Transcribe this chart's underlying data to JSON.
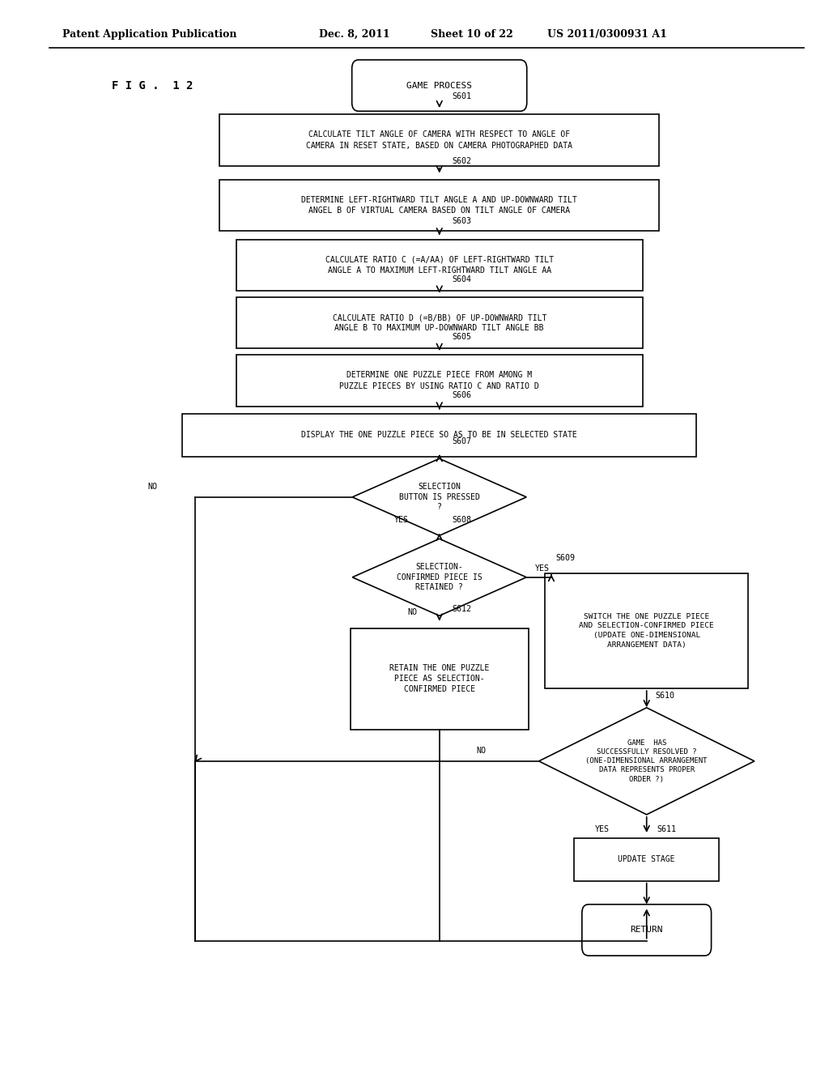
{
  "bg_color": "#ffffff",
  "header_left": "Patent Application Publication",
  "header_mid1": "Dec. 8, 2011",
  "header_mid2": "Sheet 10 of 22",
  "header_right": "US 2011/0300931 A1",
  "fig_label": "F I G .  1 2",
  "flow": {
    "start_label": "GAME PROCESS",
    "s601": "CALCULATE TILT ANGLE OF CAMERA WITH RESPECT TO ANGLE OF\nCAMERA IN RESET STATE, BASED ON CAMERA PHOTOGRAPHED DATA",
    "s602": "DETERMINE LEFT-RIGHTWARD TILT ANGLE A AND UP-DOWNWARD TILT\nANGEL B OF VIRTUAL CAMERA BASED ON TILT ANGLE OF CAMERA",
    "s603": "CALCULATE RATIO C (=A/AA) OF LEFT-RIGHTWARD TILT\nANGLE A TO MAXIMUM LEFT-RIGHTWARD TILT ANGLE AA",
    "s604": "CALCULATE RATIO D (=B/BB) OF UP-DOWNWARD TILT\nANGLE B TO MAXIMUM UP-DOWNWARD TILT ANGLE BB",
    "s605": "DETERMINE ONE PUZZLE PIECE FROM AMONG M\nPUZZLE PIECES BY USING RATIO C AND RATIO D",
    "s606": "DISPLAY THE ONE PUZZLE PIECE SO AS TO BE IN SELECTED STATE",
    "s607": "SELECTION\nBUTTON IS PRESSED\n?",
    "s608": "SELECTION-\nCONFIRMED PIECE IS\nRETAINED ?",
    "s609": "SWITCH THE ONE PUZZLE PIECE\nAND SELECTION-CONFIRMED PIECE\n(UPDATE ONE-DIMENSIONAL\nARRANGEMENT DATA)",
    "s610": "GAME  HAS\nSUCCESSFULLY RESOLVED ?\n(ONE-DIMENSIONAL ARRANGEMENT\nDATA REPRESENTS PROPER\nORDER ?)",
    "s611": "UPDATE STAGE",
    "s612": "RETAIN THE ONE PUZZLE\nPIECE AS SELECTION-\nCONFIRMED PIECE",
    "end_label": "RETURN"
  }
}
